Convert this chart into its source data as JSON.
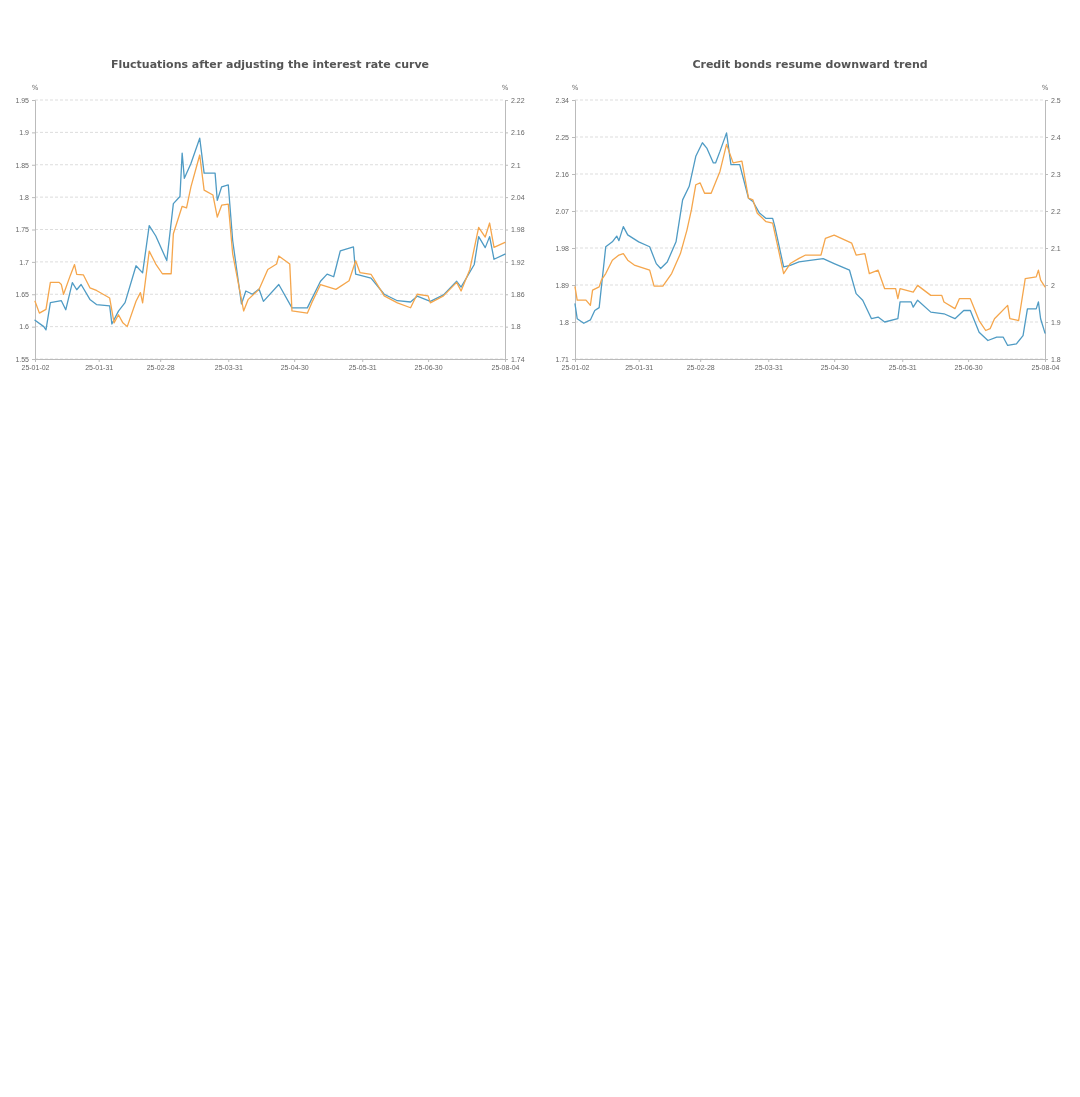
{
  "chart_data": [
    {
      "type": "line",
      "title": "Fluctuations after adjusting the interest rate curve",
      "ylabel": "%",
      "y2label": "%",
      "xlim": [
        "--01-02",
        "--08-04"
      ],
      "xticks": [
        {
          "value": "--01-02",
          "label": "25-01-02"
        },
        {
          "value": "--01-31",
          "label": "25-01-31"
        },
        {
          "value": "--02-28",
          "label": "25-02-28"
        },
        {
          "value": "--03-31",
          "label": "25-03-31"
        },
        {
          "value": "--04-30",
          "label": "25-04-30"
        },
        {
          "value": "--05-31",
          "label": "25-05-31"
        },
        {
          "value": "--06-30",
          "label": "25-06-30"
        },
        {
          "value": "--08-04",
          "label": "25-08-04"
        }
      ],
      "ylim": [
        1.55,
        1.95
      ],
      "yticks": [
        1.55,
        1.6,
        1.65,
        1.7,
        1.75,
        1.8,
        1.85,
        1.9,
        1.95
      ],
      "y2lim": [
        1.74,
        2.22
      ],
      "y2ticks": [
        1.74,
        1.8,
        1.86,
        1.92,
        1.98,
        2.04,
        2.1,
        2.16,
        2.22
      ],
      "grid": "y",
      "line_style": "solid",
      "series": [
        {
          "color": "#4f9bc4",
          "axis": "y",
          "x": [
            "--01-02",
            "--01-06",
            "--01-07",
            "--01-09",
            "--01-14",
            "--01-16",
            "--01-19",
            "--01-21",
            "--01-23",
            "--01-27",
            "--01-30",
            "--02-05",
            "--02-06",
            "--02-09",
            "--02-12",
            "--02-17",
            "--02-20",
            "--02-23",
            "--02-26",
            "--03-03",
            "--03-06",
            "--03-09",
            "--03-10",
            "--03-11",
            "--03-14",
            "--03-18",
            "--03-20",
            "--03-25",
            "--03-26",
            "--03-28",
            "--03-31",
            "--04-02",
            "--04-06",
            "--04-08",
            "--04-11",
            "--04-14",
            "--04-16",
            "--04-23",
            "--04-29",
            "--05-06",
            "--05-12",
            "--05-15",
            "--05-18",
            "--05-21",
            "--05-27",
            "--05-28",
            "--06-04",
            "--06-10",
            "--06-16",
            "--06-22",
            "--06-25",
            "--07-01",
            "--07-07",
            "--07-13",
            "--07-15",
            "--07-21",
            "--07-23",
            "--07-26",
            "--07-28",
            "--07-30",
            "--08-04"
          ],
          "values": [
            1.61,
            1.6,
            1.595,
            1.637,
            1.64,
            1.626,
            1.668,
            1.657,
            1.665,
            1.642,
            1.634,
            1.632,
            1.604,
            1.624,
            1.637,
            1.694,
            1.683,
            1.756,
            1.74,
            1.702,
            1.79,
            1.801,
            1.868,
            1.829,
            1.852,
            1.891,
            1.837,
            1.837,
            1.795,
            1.816,
            1.819,
            1.733,
            1.635,
            1.655,
            1.65,
            1.658,
            1.639,
            1.665,
            1.629,
            1.629,
            1.67,
            1.681,
            1.677,
            1.717,
            1.723,
            1.681,
            1.675,
            1.65,
            1.64,
            1.638,
            1.647,
            1.639,
            1.649,
            1.67,
            1.661,
            1.696,
            1.739,
            1.722,
            1.739,
            1.704,
            1.712
          ]
        },
        {
          "color": "#f5a64c",
          "axis": "y2",
          "x": [
            "--01-02",
            "--01-04",
            "--01-07",
            "--01-09",
            "--01-13",
            "--01-14",
            "--01-15",
            "--01-18",
            "--01-20",
            "--01-21",
            "--01-24",
            "--01-27",
            "--01-30",
            "--02-05",
            "--02-07",
            "--02-09",
            "--02-11",
            "--02-13",
            "--02-17",
            "--02-19",
            "--02-20",
            "--02-23",
            "--02-26",
            "--03-01",
            "--03-05",
            "--03-06",
            "--03-10",
            "--03-12",
            "--03-14",
            "--03-18",
            "--03-20",
            "--03-24",
            "--03-26",
            "--03-28",
            "--03-31",
            "--04-02",
            "--04-07",
            "--04-09",
            "--04-14",
            "--04-18",
            "--04-22",
            "--04-23",
            "--04-28",
            "--04-29",
            "--05-06",
            "--05-08",
            "--05-12",
            "--05-19",
            "--05-25",
            "--05-28",
            "--05-30",
            "--06-04",
            "--06-10",
            "--06-16",
            "--06-22",
            "--06-25",
            "--06-30",
            "--07-01",
            "--07-07",
            "--07-13",
            "--07-15",
            "--07-19",
            "--07-23",
            "--07-26",
            "--07-28",
            "--07-30",
            "--08-04"
          ],
          "values": [
            1.847,
            1.825,
            1.832,
            1.882,
            1.882,
            1.878,
            1.86,
            1.894,
            1.915,
            1.897,
            1.896,
            1.872,
            1.867,
            1.853,
            1.807,
            1.822,
            1.807,
            1.8,
            1.847,
            1.863,
            1.844,
            1.94,
            1.916,
            1.898,
            1.898,
            1.972,
            2.023,
            2.02,
            2.059,
            2.118,
            2.053,
            2.044,
            2.003,
            2.025,
            2.027,
            1.935,
            1.829,
            1.85,
            1.869,
            1.906,
            1.916,
            1.931,
            1.916,
            1.829,
            1.825,
            1.844,
            1.878,
            1.869,
            1.885,
            1.922,
            1.9,
            1.897,
            1.857,
            1.844,
            1.835,
            1.86,
            1.857,
            1.844,
            1.857,
            1.882,
            1.866,
            1.906,
            1.984,
            1.966,
            1.992,
            1.947,
            1.956
          ]
        }
      ]
    },
    {
      "type": "line",
      "title": "Credit bonds resume downward trend",
      "ylabel": "%",
      "y2label": "%",
      "xlim": [
        "--01-02",
        "--08-04"
      ],
      "xticks": [
        {
          "value": "--01-02",
          "label": "25-01-02"
        },
        {
          "value": "--01-31",
          "label": "25-01-31"
        },
        {
          "value": "--02-28",
          "label": "25-02-28"
        },
        {
          "value": "--03-31",
          "label": "25-03-31"
        },
        {
          "value": "--04-30",
          "label": "25-04-30"
        },
        {
          "value": "--05-31",
          "label": "25-05-31"
        },
        {
          "value": "--06-30",
          "label": "25-06-30"
        },
        {
          "value": "--08-04",
          "label": "25-08-04"
        }
      ],
      "ylim": [
        1.71,
        2.34
      ],
      "yticks": [
        1.71,
        1.8,
        1.89,
        1.98,
        2.07,
        2.16,
        2.25,
        2.34
      ],
      "y2lim": [
        1.8,
        2.5
      ],
      "y2ticks": [
        1.8,
        1.9,
        2,
        2.1,
        2.2,
        2.3,
        2.4,
        2.5
      ],
      "grid": "y",
      "line_style": "solid",
      "series": [
        {
          "color": "#4f9bc4",
          "axis": "y",
          "x": [
            "--01-02",
            "--01-03",
            "--01-06",
            "--01-09",
            "--01-11",
            "--01-13",
            "--01-16",
            "--01-19",
            "--01-21",
            "--01-22",
            "--01-24",
            "--01-26",
            "--01-31",
            "--02-05",
            "--02-08",
            "--02-10",
            "--02-13",
            "--02-17",
            "--02-20",
            "--02-23",
            "--02-26",
            "--03-01",
            "--03-03",
            "--03-06",
            "--03-07",
            "--03-09",
            "--03-12",
            "--03-14",
            "--03-18",
            "--03-22",
            "--03-24",
            "--03-27",
            "--03-30",
            "--04-02",
            "--04-03",
            "--04-07",
            "--04-10",
            "--04-14",
            "--04-19",
            "--04-25",
            "--04-30",
            "--05-07",
            "--05-10",
            "--05-13",
            "--05-17",
            "--05-20",
            "--05-23",
            "--05-29",
            "--05-30",
            "--06-04",
            "--06-05",
            "--06-07",
            "--06-13",
            "--06-19",
            "--06-24",
            "--06-28",
            "--07-01",
            "--07-05",
            "--07-09",
            "--07-13",
            "--07-16",
            "--07-18",
            "--07-22",
            "--07-25",
            "--07-27",
            "--07-31",
            "--08-01",
            "--08-02",
            "--08-04"
          ],
          "values": [
            1.844,
            1.808,
            1.797,
            1.805,
            1.828,
            1.835,
            1.983,
            1.995,
            2.009,
            1.998,
            2.032,
            2.012,
            1.995,
            1.983,
            1.942,
            1.93,
            1.946,
            1.995,
            2.097,
            2.13,
            2.203,
            2.236,
            2.223,
            2.187,
            2.187,
            2.215,
            2.26,
            2.183,
            2.183,
            2.101,
            2.093,
            2.065,
            2.052,
            2.052,
            2.032,
            1.934,
            1.938,
            1.946,
            1.95,
            1.954,
            1.942,
            1.926,
            1.869,
            1.853,
            1.808,
            1.812,
            1.8,
            1.808,
            1.849,
            1.849,
            1.836,
            1.853,
            1.824,
            1.82,
            1.808,
            1.828,
            1.828,
            1.775,
            1.755,
            1.763,
            1.763,
            1.743,
            1.747,
            1.767,
            1.832,
            1.832,
            1.849,
            1.808,
            1.773
          ]
        },
        {
          "color": "#f5a64c",
          "axis": "y2",
          "x": [
            "--01-02",
            "--01-03",
            "--01-07",
            "--01-09",
            "--01-10",
            "--01-13",
            "--01-14",
            "--01-16",
            "--01-19",
            "--01-22",
            "--01-24",
            "--01-26",
            "--01-29",
            "--02-05",
            "--02-07",
            "--02-11",
            "--02-15",
            "--02-17",
            "--02-19",
            "--02-22",
            "--02-24",
            "--02-26",
            "--02-28",
            "--03-02",
            "--03-05",
            "--03-09",
            "--03-12",
            "--03-15",
            "--03-19",
            "--03-22",
            "--03-24",
            "--03-26",
            "--03-30",
            "--04-02",
            "--04-07",
            "--04-10",
            "--04-14",
            "--04-17",
            "--04-24",
            "--04-26",
            "--04-30",
            "--05-08",
            "--05-10",
            "--05-14",
            "--05-16",
            "--05-20",
            "--05-23",
            "--05-28",
            "--05-29",
            "--05-30",
            "--06-05",
            "--06-07",
            "--06-13",
            "--06-18",
            "--06-19",
            "--06-24",
            "--06-26",
            "--07-01",
            "--07-05",
            "--07-08",
            "--07-10",
            "--07-12",
            "--07-18",
            "--07-19",
            "--07-23",
            "--07-26",
            "--07-31",
            "--08-01",
            "--08-02",
            "--08-04"
          ],
          "values": [
            1.995,
            1.959,
            1.959,
            1.945,
            1.986,
            1.995,
            2.013,
            2.031,
            2.067,
            2.081,
            2.085,
            2.067,
            2.054,
            2.04,
            1.997,
            1.997,
            2.031,
            2.058,
            2.085,
            2.149,
            2.203,
            2.271,
            2.276,
            2.248,
            2.248,
            2.307,
            2.38,
            2.33,
            2.335,
            2.235,
            2.23,
            2.194,
            2.171,
            2.167,
            2.031,
            2.058,
            2.072,
            2.081,
            2.081,
            2.126,
            2.135,
            2.113,
            2.081,
            2.085,
            2.031,
            2.04,
            1.99,
            1.99,
            1.963,
            1.99,
            1.981,
            1.999,
            1.972,
            1.972,
            1.954,
            1.936,
            1.963,
            1.963,
            1.904,
            1.877,
            1.882,
            1.909,
            1.945,
            1.909,
            1.904,
            2.017,
            2.022,
            2.04,
            2.013,
            1.995
          ]
        }
      ]
    }
  ]
}
